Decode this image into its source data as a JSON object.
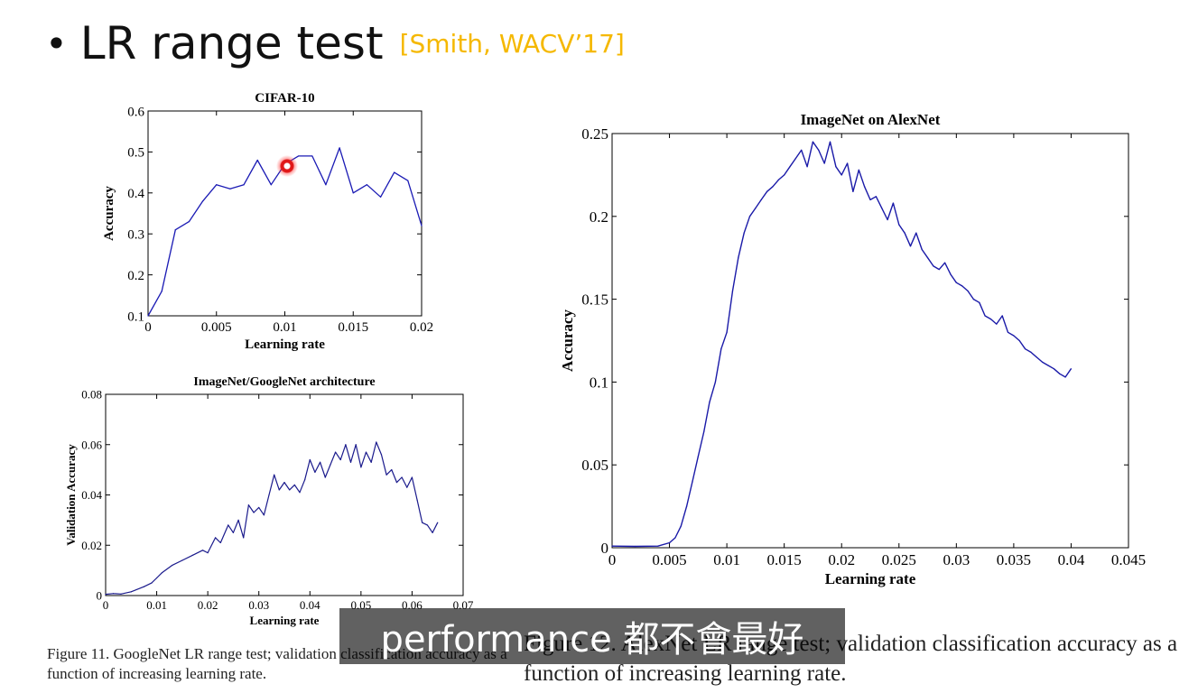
{
  "slide": {
    "bullet": "•",
    "title": "LR range test",
    "citation": "[Smith, WACV’17]"
  },
  "chart_data": [
    {
      "id": "cifar",
      "type": "line",
      "title": "CIFAR-10",
      "xlabel": "Learning rate",
      "ylabel": "Accuracy",
      "xlim": [
        0,
        0.02
      ],
      "ylim": [
        0.1,
        0.6
      ],
      "xticks": [
        0,
        0.005,
        0.01,
        0.015,
        0.02
      ],
      "xtick_labels": [
        "0",
        "0.005",
        "0.01",
        "0.015",
        "0.02"
      ],
      "yticks": [
        0.1,
        0.2,
        0.3,
        0.4,
        0.5,
        0.6
      ],
      "ytick_labels": [
        "0.1",
        "0.2",
        "0.3",
        "0.4",
        "0.5",
        "0.6"
      ],
      "color": "#1a1ab4",
      "x": [
        0,
        0.001,
        0.002,
        0.003,
        0.004,
        0.005,
        0.006,
        0.007,
        0.008,
        0.009,
        0.01,
        0.011,
        0.012,
        0.013,
        0.014,
        0.015,
        0.016,
        0.017,
        0.018,
        0.019,
        0.02
      ],
      "y": [
        0.1,
        0.16,
        0.31,
        0.33,
        0.38,
        0.42,
        0.41,
        0.42,
        0.48,
        0.42,
        0.47,
        0.49,
        0.49,
        0.42,
        0.51,
        0.4,
        0.42,
        0.39,
        0.45,
        0.43,
        0.32
      ]
    },
    {
      "id": "googlenet",
      "type": "line",
      "title": "ImageNet/GoogleNet architecture",
      "xlabel": "Learning rate",
      "ylabel": "Validation Accuracy",
      "xlim": [
        0,
        0.07
      ],
      "ylim": [
        0,
        0.08
      ],
      "xticks": [
        0,
        0.01,
        0.02,
        0.03,
        0.04,
        0.05,
        0.06,
        0.07
      ],
      "xtick_labels": [
        "0",
        "0.01",
        "0.02",
        "0.03",
        "0.04",
        "0.05",
        "0.06",
        "0.07"
      ],
      "yticks": [
        0,
        0.02,
        0.04,
        0.06,
        0.08
      ],
      "ytick_labels": [
        "0",
        "0.02",
        "0.04",
        "0.06",
        "0.08"
      ],
      "color": "#1a1a8c",
      "x": [
        0,
        0.0015,
        0.003,
        0.005,
        0.0075,
        0.009,
        0.01,
        0.011,
        0.013,
        0.015,
        0.017,
        0.019,
        0.02,
        0.0215,
        0.0225,
        0.024,
        0.025,
        0.026,
        0.027,
        0.028,
        0.029,
        0.03,
        0.031,
        0.032,
        0.033,
        0.034,
        0.035,
        0.036,
        0.037,
        0.038,
        0.039,
        0.04,
        0.041,
        0.042,
        0.043,
        0.044,
        0.045,
        0.046,
        0.047,
        0.048,
        0.049,
        0.05,
        0.051,
        0.052,
        0.053,
        0.054,
        0.055,
        0.056,
        0.057,
        0.058,
        0.059,
        0.06,
        0.061,
        0.062,
        0.063,
        0.064,
        0.065
      ],
      "y": [
        0.0005,
        0.0008,
        0.0006,
        0.0015,
        0.0035,
        0.005,
        0.007,
        0.009,
        0.012,
        0.014,
        0.016,
        0.018,
        0.017,
        0.023,
        0.021,
        0.028,
        0.025,
        0.03,
        0.023,
        0.036,
        0.033,
        0.035,
        0.032,
        0.04,
        0.048,
        0.042,
        0.045,
        0.042,
        0.044,
        0.041,
        0.046,
        0.054,
        0.049,
        0.053,
        0.047,
        0.052,
        0.057,
        0.054,
        0.06,
        0.053,
        0.06,
        0.051,
        0.057,
        0.053,
        0.061,
        0.056,
        0.048,
        0.05,
        0.045,
        0.047,
        0.043,
        0.047,
        0.038,
        0.029,
        0.028,
        0.025,
        0.029
      ]
    },
    {
      "id": "alexnet",
      "type": "line",
      "title": "ImageNet on AlexNet",
      "xlabel": "Learning rate",
      "ylabel": "Accuracy",
      "xlim": [
        0,
        0.045
      ],
      "ylim": [
        0,
        0.25
      ],
      "xticks": [
        0,
        0.005,
        0.01,
        0.015,
        0.02,
        0.025,
        0.03,
        0.035,
        0.04,
        0.045
      ],
      "xtick_labels": [
        "0",
        "0.005",
        "0.01",
        "0.015",
        "0.02",
        "0.025",
        "0.03",
        "0.035",
        "0.04",
        "0.045"
      ],
      "yticks": [
        0,
        0.05,
        0.1,
        0.15,
        0.2,
        0.25
      ],
      "ytick_labels": [
        "0",
        "0.05",
        "0.1",
        "0.15",
        "0.2",
        "0.25"
      ],
      "color": "#1a1aa8",
      "x": [
        0,
        0.002,
        0.004,
        0.005,
        0.0055,
        0.006,
        0.0065,
        0.007,
        0.0075,
        0.008,
        0.0085,
        0.009,
        0.0095,
        0.01,
        0.0105,
        0.011,
        0.0115,
        0.012,
        0.0125,
        0.013,
        0.0135,
        0.014,
        0.0145,
        0.015,
        0.0155,
        0.016,
        0.0165,
        0.017,
        0.0175,
        0.018,
        0.0185,
        0.019,
        0.0195,
        0.02,
        0.0205,
        0.021,
        0.0215,
        0.022,
        0.0225,
        0.023,
        0.0235,
        0.024,
        0.0245,
        0.025,
        0.0255,
        0.026,
        0.0265,
        0.027,
        0.0275,
        0.028,
        0.0285,
        0.029,
        0.0295,
        0.03,
        0.0305,
        0.031,
        0.0315,
        0.032,
        0.0325,
        0.033,
        0.0335,
        0.034,
        0.0345,
        0.035,
        0.0355,
        0.036,
        0.0365,
        0.037,
        0.0375,
        0.038,
        0.0385,
        0.039,
        0.0395,
        0.04
      ],
      "y": [
        0.001,
        0.0008,
        0.001,
        0.003,
        0.006,
        0.013,
        0.025,
        0.04,
        0.055,
        0.07,
        0.088,
        0.1,
        0.12,
        0.13,
        0.155,
        0.175,
        0.19,
        0.2,
        0.205,
        0.21,
        0.215,
        0.218,
        0.222,
        0.225,
        0.23,
        0.235,
        0.24,
        0.23,
        0.245,
        0.24,
        0.232,
        0.245,
        0.23,
        0.225,
        0.232,
        0.215,
        0.228,
        0.218,
        0.21,
        0.212,
        0.205,
        0.198,
        0.208,
        0.195,
        0.19,
        0.182,
        0.19,
        0.18,
        0.175,
        0.17,
        0.168,
        0.172,
        0.165,
        0.16,
        0.158,
        0.155,
        0.15,
        0.148,
        0.14,
        0.138,
        0.135,
        0.14,
        0.13,
        0.128,
        0.125,
        0.12,
        0.118,
        0.115,
        0.112,
        0.11,
        0.108,
        0.105,
        0.103,
        0.108
      ]
    }
  ],
  "captions": {
    "left": "Figure 11. GoogleNet LR range test; validation classification accuracy as a function of increasing learning rate.",
    "right": "Figure 12. AlexNet LR range test; validation classification accuracy as a function of increasing learning rate."
  },
  "subtitle": "performance 都不會最好"
}
